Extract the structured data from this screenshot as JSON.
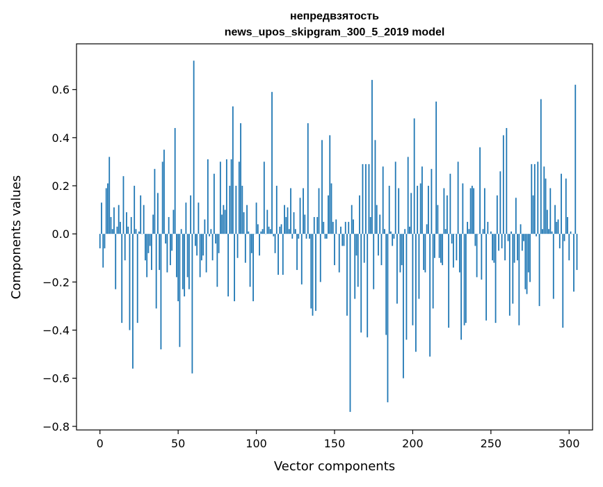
{
  "colors": {
    "bar": "#1f77b4",
    "axis": "#000000",
    "background": "#ffffff"
  },
  "chart_data": {
    "type": "bar",
    "title": "непредвзятость",
    "subtitle": "news_upos_skipgram_300_5_2019 model",
    "xlabel": "Vector components",
    "ylabel": "Components values",
    "xlim": [
      -15,
      315
    ],
    "ylim": [
      -0.815,
      0.79
    ],
    "xticks": [
      0,
      50,
      100,
      150,
      200,
      250,
      300
    ],
    "yticks": [
      -0.8,
      -0.6,
      -0.4,
      -0.2,
      0.0,
      0.2,
      0.4,
      0.6
    ],
    "ytick_labels": [
      "−0.8",
      "−0.6",
      "−0.4",
      "−0.2",
      "0.0",
      "0.2",
      "0.4",
      "0.6"
    ],
    "xtick_labels": [
      "0",
      "50",
      "100",
      "150",
      "200",
      "250",
      "300"
    ],
    "grid": false,
    "values": [
      -0.06,
      0.13,
      -0.14,
      -0.06,
      0.19,
      0.21,
      0.32,
      0.07,
      0.02,
      0.11,
      -0.23,
      0.03,
      0.12,
      0.05,
      -0.37,
      0.24,
      -0.11,
      0.09,
      0.03,
      -0.4,
      0.07,
      -0.56,
      0.2,
      0.02,
      -0.37,
      0.01,
      0.16,
      0.0,
      0.12,
      -0.11,
      -0.18,
      -0.08,
      -0.05,
      -0.15,
      0.08,
      0.27,
      -0.31,
      0.17,
      -0.15,
      -0.48,
      0.3,
      0.35,
      -0.04,
      -0.16,
      0.07,
      -0.13,
      -0.07,
      0.1,
      0.44,
      -0.18,
      -0.28,
      -0.47,
      0.02,
      -0.23,
      -0.26,
      0.13,
      -0.18,
      -0.23,
      0.16,
      -0.58,
      0.72,
      -0.05,
      -0.09,
      0.13,
      -0.18,
      -0.11,
      -0.09,
      0.06,
      -0.16,
      0.31,
      -0.01,
      0.02,
      -0.11,
      0.25,
      -0.04,
      -0.22,
      -0.08,
      0.3,
      0.08,
      0.12,
      0.1,
      0.31,
      -0.26,
      0.2,
      0.31,
      0.53,
      -0.28,
      0.2,
      -0.1,
      0.3,
      0.46,
      0.2,
      0.09,
      -0.12,
      0.12,
      0.01,
      -0.22,
      -0.08,
      -0.28,
      0.0,
      0.13,
      0.04,
      -0.09,
      0.01,
      0.02,
      0.3,
      0.0,
      0.1,
      0.03,
      0.02,
      0.59,
      -0.01,
      -0.08,
      0.2,
      -0.17,
      0.03,
      0.04,
      -0.17,
      0.12,
      0.07,
      0.11,
      0.02,
      0.19,
      -0.02,
      0.09,
      0.02,
      -0.15,
      -0.02,
      0.15,
      -0.21,
      0.19,
      0.08,
      -0.02,
      0.46,
      -0.02,
      -0.31,
      -0.34,
      0.07,
      -0.32,
      0.07,
      0.19,
      -0.2,
      0.39,
      0.05,
      -0.02,
      -0.02,
      0.16,
      0.41,
      0.21,
      0.05,
      -0.13,
      0.06,
      0.0,
      -0.16,
      0.03,
      -0.05,
      -0.05,
      0.05,
      -0.34,
      0.05,
      -0.74,
      0.12,
      0.06,
      -0.27,
      -0.09,
      -0.22,
      0.16,
      -0.41,
      0.29,
      -0.12,
      0.29,
      -0.43,
      0.29,
      0.07,
      0.64,
      -0.23,
      0.39,
      0.12,
      -0.09,
      0.08,
      -0.13,
      0.28,
      0.02,
      -0.42,
      -0.7,
      0.2,
      0.01,
      -0.05,
      -0.02,
      0.3,
      -0.29,
      0.19,
      -0.16,
      -0.13,
      -0.6,
      0.02,
      -0.44,
      0.32,
      0.03,
      0.17,
      -0.38,
      0.48,
      -0.49,
      0.2,
      -0.27,
      0.21,
      0.28,
      -0.15,
      -0.16,
      0.04,
      0.2,
      -0.51,
      0.27,
      -0.31,
      -0.1,
      0.55,
      0.12,
      -0.1,
      -0.12,
      -0.13,
      0.19,
      0.02,
      0.16,
      -0.39,
      0.25,
      -0.04,
      -0.14,
      0.0,
      -0.11,
      0.3,
      -0.16,
      -0.44,
      0.21,
      -0.38,
      -0.37,
      0.05,
      0.02,
      0.19,
      0.2,
      0.19,
      -0.05,
      -0.18,
      0.0,
      0.36,
      -0.19,
      0.02,
      0.19,
      -0.36,
      0.05,
      0.0,
      0.01,
      -0.11,
      -0.12,
      -0.37,
      0.16,
      -0.07,
      0.26,
      -0.06,
      0.41,
      -0.11,
      0.44,
      -0.03,
      -0.34,
      0.01,
      -0.29,
      -0.12,
      0.15,
      -0.11,
      -0.38,
      0.04,
      -0.07,
      -0.03,
      -0.23,
      -0.25,
      -0.16,
      -0.2,
      0.29,
      0.16,
      0.29,
      -0.01,
      0.3,
      -0.3,
      0.56,
      0.02,
      0.28,
      0.23,
      0.1,
      0.02,
      0.19,
      0.01,
      -0.27,
      0.12,
      0.05,
      0.06,
      -0.06,
      0.25,
      -0.39,
      -0.03,
      0.23,
      0.07,
      -0.11,
      0.01,
      0.0,
      -0.24,
      0.62,
      -0.15
    ]
  }
}
